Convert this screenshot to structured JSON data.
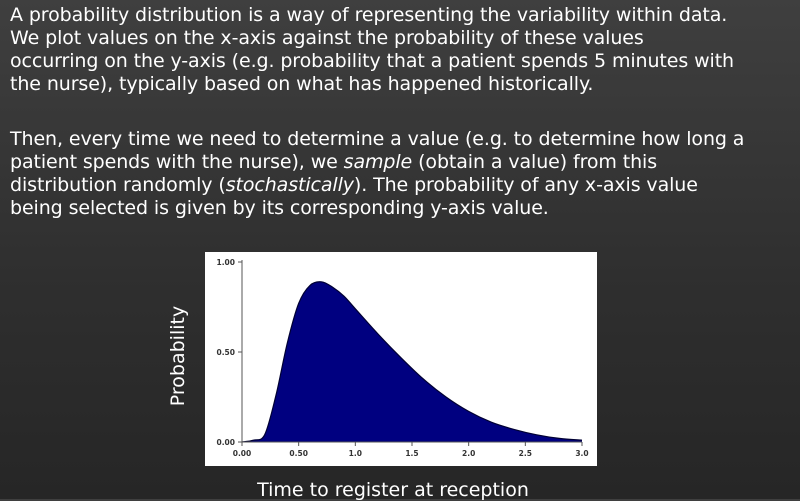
{
  "paragraph1": [
    "A probability distribution is a way of representing the variability within data.",
    "We plot values on the x-axis against the probability of these values",
    "occurring on the y-axis (e.g. probability that a patient spends 5 minutes with",
    "the nurse), typically based on what has happened historically."
  ],
  "paragraph2": {
    "line1": "Then, every time we need to determine a value (e.g. to determine how long a",
    "line2": "patient spends with the nurse), we",
    "line2_italic": "sample",
    "line2_end": "(obtain a value) from this",
    "line3_start": "distribution randomly (",
    "line3_italic": "stochastically",
    "line3_end": ").  The probability of any x-axis value",
    "line4": "being selected is given by its corresponding y-axis value."
  },
  "chart_data": {
    "type": "area",
    "title": "",
    "xlabel": "Time to register at reception",
    "ylabel": "Probability",
    "xlim": [
      0,
      3.0
    ],
    "ylim": [
      0,
      1.0
    ],
    "x_ticks": [
      "0.00",
      "0.50",
      "1.0",
      "1.5",
      "2.0",
      "2.5",
      "3.0"
    ],
    "y_ticks": [
      "0.00",
      "0.50",
      "1.00"
    ],
    "x": [
      0,
      0.1,
      0.2,
      0.3,
      0.4,
      0.5,
      0.6,
      0.7,
      0.8,
      0.9,
      1.0,
      1.2,
      1.4,
      1.6,
      1.8,
      2.0,
      2.2,
      2.4,
      2.6,
      2.8,
      3.0
    ],
    "y": [
      0,
      0.01,
      0.04,
      0.26,
      0.55,
      0.77,
      0.87,
      0.89,
      0.86,
      0.81,
      0.74,
      0.6,
      0.47,
      0.35,
      0.25,
      0.17,
      0.11,
      0.07,
      0.04,
      0.02,
      0.01
    ],
    "fill_color": "#000080",
    "grid": false
  }
}
